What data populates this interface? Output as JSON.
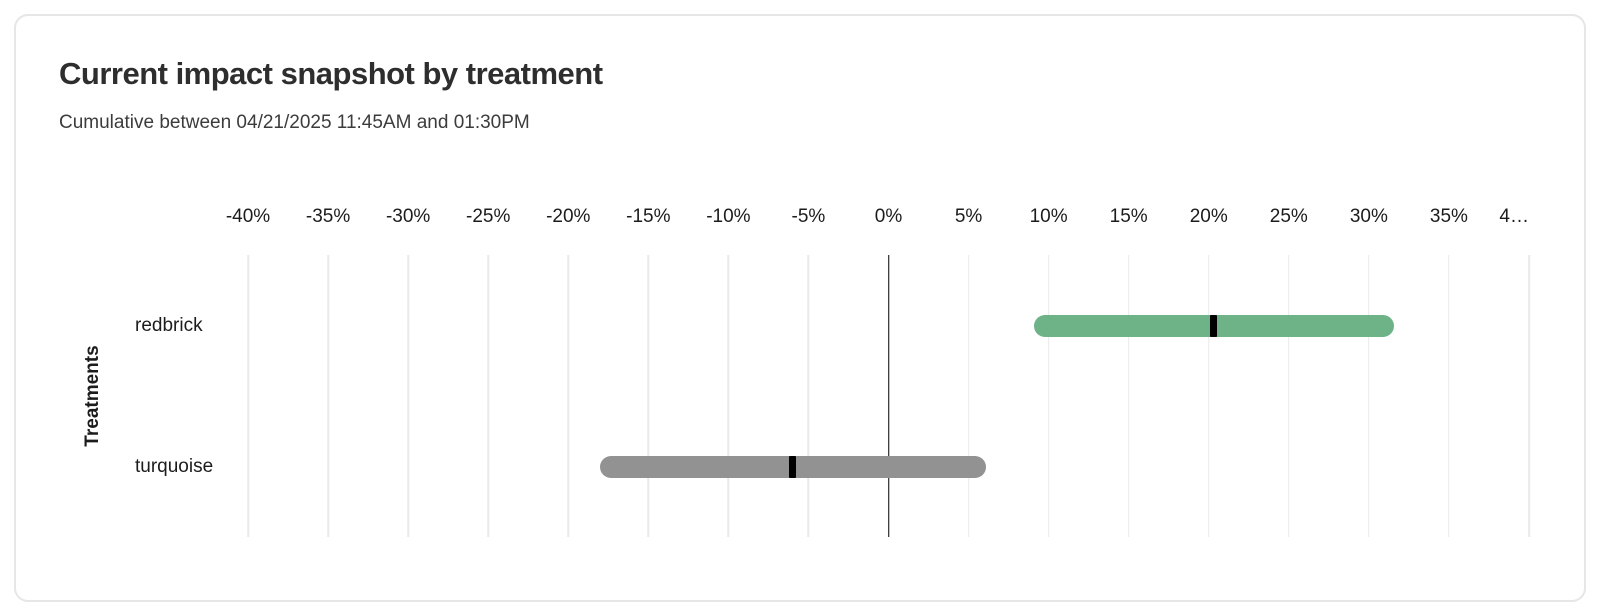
{
  "chart_data": {
    "type": "range_bar",
    "title": "Current impact snapshot by treatment",
    "subtitle": "Cumulative between 04/21/2025 11:45AM and 01:30PM",
    "ylabel": "Treatments",
    "xlabel": "",
    "xlim": [
      -40,
      40
    ],
    "grid": "vertical",
    "legend": "none",
    "unit": "%",
    "ticks": [
      {
        "value": -40,
        "label": "-40%"
      },
      {
        "value": -35,
        "label": "-35%"
      },
      {
        "value": -30,
        "label": "-30%"
      },
      {
        "value": -25,
        "label": "-25%"
      },
      {
        "value": -20,
        "label": "-20%"
      },
      {
        "value": -15,
        "label": "-15%"
      },
      {
        "value": -10,
        "label": "-10%"
      },
      {
        "value": -5,
        "label": "-5%"
      },
      {
        "value": 0,
        "label": "0%"
      },
      {
        "value": 5,
        "label": "5%"
      },
      {
        "value": 10,
        "label": "10%"
      },
      {
        "value": 15,
        "label": "15%"
      },
      {
        "value": 20,
        "label": "20%"
      },
      {
        "value": 25,
        "label": "25%"
      },
      {
        "value": 30,
        "label": "30%"
      },
      {
        "value": 35,
        "label": "35%"
      },
      {
        "value": 40,
        "label": "4…",
        "align": "right"
      }
    ],
    "series": [
      {
        "name": "redbrick",
        "low": 9.1,
        "high": 31.6,
        "point": 20.3,
        "color": "#6eb388"
      },
      {
        "name": "turquoise",
        "low": -18.0,
        "high": 6.1,
        "point": -6.0,
        "color": "#929292"
      }
    ],
    "colors": {
      "grid": "#e9e9e9",
      "zero_line": "#000000",
      "marker": "#000000"
    }
  }
}
